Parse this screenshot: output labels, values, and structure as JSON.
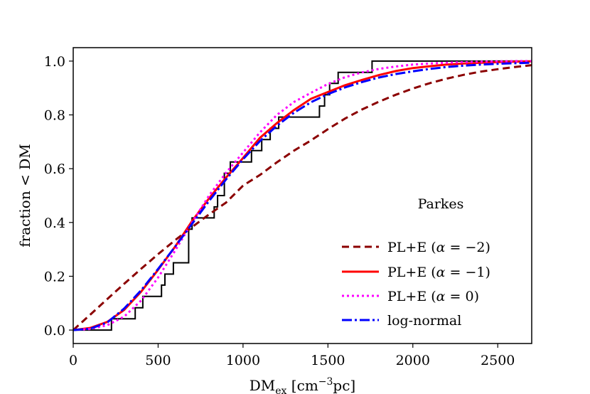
{
  "chart_data": {
    "type": "line",
    "title": "",
    "xlabel": {
      "main": "DM",
      "sub": "ex",
      "rest_open": " [cm",
      "sup": "−3",
      "rest_close": "pc]"
    },
    "ylabel": "fraction < DM",
    "xlim": [
      0,
      2700
    ],
    "ylim": [
      -0.05,
      1.05
    ],
    "xticks": [
      0,
      500,
      1000,
      1500,
      2000,
      2500
    ],
    "yticks": [
      0.0,
      0.2,
      0.4,
      0.6,
      0.8,
      1.0
    ],
    "xtick_labels": [
      "0",
      "500",
      "1000",
      "1500",
      "2000",
      "2500"
    ],
    "ytick_labels": [
      "0.0",
      "0.2",
      "0.4",
      "0.6",
      "0.8",
      "1.0"
    ],
    "legend_title": "Parkes",
    "legend_position": "lower right",
    "grid": false,
    "empirical": {
      "name": "Parkes data",
      "color": "#000000",
      "x": [
        0,
        225,
        225,
        365,
        365,
        410,
        410,
        520,
        520,
        540,
        540,
        590,
        590,
        680,
        680,
        700,
        700,
        830,
        830,
        850,
        850,
        890,
        890,
        925,
        925,
        1050,
        1050,
        1110,
        1110,
        1160,
        1160,
        1210,
        1210,
        1450,
        1450,
        1480,
        1480,
        1510,
        1510,
        1560,
        1560,
        1760,
        1760,
        2580,
        2580,
        2700
      ],
      "y": [
        0.0,
        0.0,
        0.042,
        0.042,
        0.083,
        0.083,
        0.125,
        0.125,
        0.167,
        0.167,
        0.208,
        0.208,
        0.25,
        0.25,
        0.375,
        0.375,
        0.417,
        0.417,
        0.458,
        0.458,
        0.5,
        0.5,
        0.583,
        0.583,
        0.625,
        0.625,
        0.667,
        0.667,
        0.708,
        0.708,
        0.75,
        0.75,
        0.792,
        0.792,
        0.833,
        0.833,
        0.875,
        0.875,
        0.917,
        0.917,
        0.958,
        0.958,
        1.0,
        1.0,
        1.0,
        1.0
      ]
    },
    "series": [
      {
        "name": "PL+E (α = −2)",
        "label_prefix": "PL+E (",
        "label_alpha": "α",
        "label_suffix": " = −2)",
        "color": "#8b0000",
        "dash": "10,6",
        "x": [
          0,
          100,
          200,
          300,
          400,
          500,
          600,
          700,
          800,
          900,
          1000,
          1100,
          1200,
          1300,
          1400,
          1500,
          1600,
          1700,
          1800,
          1900,
          2000,
          2100,
          2200,
          2300,
          2400,
          2500,
          2600,
          2700
        ],
        "y": [
          0.0,
          0.057,
          0.115,
          0.172,
          0.228,
          0.282,
          0.334,
          0.383,
          0.43,
          0.474,
          0.537,
          0.577,
          0.624,
          0.667,
          0.705,
          0.747,
          0.786,
          0.82,
          0.849,
          0.875,
          0.898,
          0.918,
          0.935,
          0.949,
          0.961,
          0.97,
          0.978,
          0.985
        ]
      },
      {
        "name": "PL+E (α = −1)",
        "label_prefix": "PL+E (",
        "label_alpha": "α",
        "label_suffix": " = −1)",
        "color": "#ff0000",
        "dash": "",
        "x": [
          0,
          100,
          200,
          300,
          400,
          500,
          600,
          700,
          800,
          900,
          1000,
          1100,
          1200,
          1300,
          1400,
          1500,
          1600,
          1700,
          1800,
          1900,
          2000,
          2100,
          2200,
          2300,
          2400,
          2500,
          2600,
          2700
        ],
        "y": [
          0.0,
          0.008,
          0.03,
          0.075,
          0.143,
          0.224,
          0.31,
          0.405,
          0.49,
          0.567,
          0.64,
          0.715,
          0.77,
          0.818,
          0.86,
          0.885,
          0.91,
          0.93,
          0.948,
          0.963,
          0.974,
          0.981,
          0.987,
          0.991,
          0.994,
          0.996,
          0.998,
          0.999
        ]
      },
      {
        "name": "PL+E (α = 0)",
        "label_prefix": "PL+E (",
        "label_alpha": "α",
        "label_suffix": " = 0)",
        "color": "#ff00ff",
        "dash": "3,4",
        "x": [
          0,
          100,
          200,
          300,
          400,
          500,
          600,
          700,
          800,
          900,
          1000,
          1100,
          1200,
          1300,
          1400,
          1500,
          1600,
          1700,
          1800,
          1900,
          2000,
          2100,
          2200,
          2300,
          2400,
          2500,
          2600,
          2700
        ],
        "y": [
          0.0,
          0.004,
          0.018,
          0.05,
          0.11,
          0.195,
          0.295,
          0.4,
          0.5,
          0.585,
          0.66,
          0.735,
          0.8,
          0.848,
          0.882,
          0.915,
          0.94,
          0.958,
          0.971,
          0.98,
          0.987,
          0.991,
          0.994,
          0.996,
          0.998,
          0.999,
          1.0,
          1.0
        ]
      },
      {
        "name": "log-normal",
        "label_prefix": "log-normal",
        "label_alpha": "",
        "label_suffix": "",
        "color": "#0000ff",
        "dash": "14,4,3,4",
        "x": [
          0,
          100,
          200,
          300,
          400,
          500,
          600,
          700,
          800,
          900,
          1000,
          1100,
          1200,
          1300,
          1400,
          1500,
          1600,
          1700,
          1800,
          1900,
          2000,
          2100,
          2200,
          2300,
          2400,
          2500,
          2600,
          2700
        ],
        "y": [
          0.0,
          0.005,
          0.028,
          0.08,
          0.148,
          0.227,
          0.31,
          0.395,
          0.48,
          0.56,
          0.635,
          0.703,
          0.76,
          0.808,
          0.847,
          0.877,
          0.902,
          0.922,
          0.939,
          0.952,
          0.962,
          0.971,
          0.978,
          0.983,
          0.987,
          0.99,
          0.992,
          0.994
        ]
      }
    ]
  }
}
